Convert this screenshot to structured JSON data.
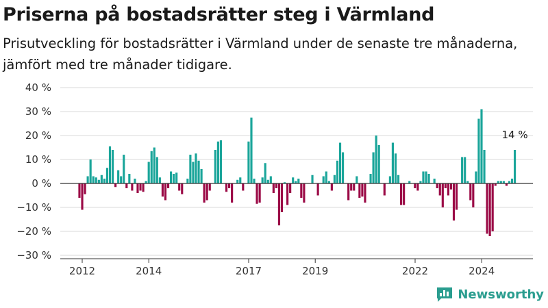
{
  "title": "Priserna på bostadsrätter steg i Värmland",
  "subtitle": "Prisutveckling för bostadsrätter i Värmland under de senaste tre månaderna, jämfört med tre månader tidigare.",
  "brand": "Newsworthy",
  "colors": {
    "positive": "#1aa59a",
    "negative": "#9b0a46",
    "axis": "#333333",
    "grid": "#d9d9d9",
    "brand": "#2a9d8f"
  },
  "chart_data": {
    "type": "bar",
    "title": "Priserna på bostadsrätter steg i Värmland",
    "xlabel": "",
    "ylabel": "",
    "ylim": [
      -30,
      40
    ],
    "y_ticks": [
      40,
      30,
      20,
      10,
      0,
      -10,
      -20,
      -30
    ],
    "y_tick_labels": [
      "40 %",
      "30 %",
      "20 %",
      "10 %",
      "0 %",
      "−10 %",
      "−20 %",
      "−30 %"
    ],
    "x_ticks": [
      {
        "label": "2012",
        "at": 2012
      },
      {
        "label": "2014",
        "at": 2014
      },
      {
        "label": "2017",
        "at": 2017
      },
      {
        "label": "2019",
        "at": 2019
      },
      {
        "label": "2022",
        "at": 2022
      },
      {
        "label": "2024",
        "at": 2024
      }
    ],
    "x_start": 2011.917,
    "x_step": 0.0833,
    "grid": true,
    "annotation": {
      "text": "14 %",
      "target": "last"
    },
    "values": [
      -6,
      -11,
      -4.5,
      3,
      10,
      3,
      2.5,
      1.5,
      3.5,
      2,
      6.5,
      15.5,
      14,
      -1.5,
      5.5,
      3,
      12,
      -2,
      4,
      -3,
      2,
      -4,
      -3,
      -3.5,
      1,
      9,
      13.5,
      15,
      11,
      2.5,
      -5.5,
      -7,
      -2,
      5,
      4,
      4.5,
      -3,
      -4.5,
      0,
      2,
      12,
      9,
      12.5,
      9.5,
      6,
      -8,
      -7,
      -3,
      0,
      14,
      17.5,
      18,
      0,
      -3.5,
      -2,
      -8,
      0,
      1.5,
      2.5,
      -3,
      0,
      17.5,
      27.5,
      2,
      -8.5,
      -8,
      2.5,
      8.5,
      1.5,
      3,
      -4,
      -2,
      -17.5,
      -12,
      0.5,
      -9,
      -4,
      2.5,
      1,
      2,
      -6,
      -8,
      0,
      0,
      3.5,
      0,
      -5,
      0,
      3,
      5,
      1,
      -3,
      3.5,
      9.5,
      17,
      13,
      0,
      -7,
      -3,
      -3,
      3,
      -6,
      -5.5,
      -8,
      0,
      4,
      13,
      20,
      16,
      0,
      -5,
      0,
      3,
      17,
      12.5,
      3.5,
      -9,
      -9,
      0,
      1,
      0,
      -2,
      -3,
      1,
      5,
      5,
      4,
      0,
      2,
      -2,
      -5,
      -10,
      -2,
      -5,
      -2.5,
      -15.5,
      -11,
      0,
      11,
      11,
      1,
      -7,
      -10,
      5,
      27,
      31,
      14,
      -21,
      -22,
      -20,
      -1,
      1,
      1,
      1,
      -1,
      1,
      2,
      14
    ]
  }
}
